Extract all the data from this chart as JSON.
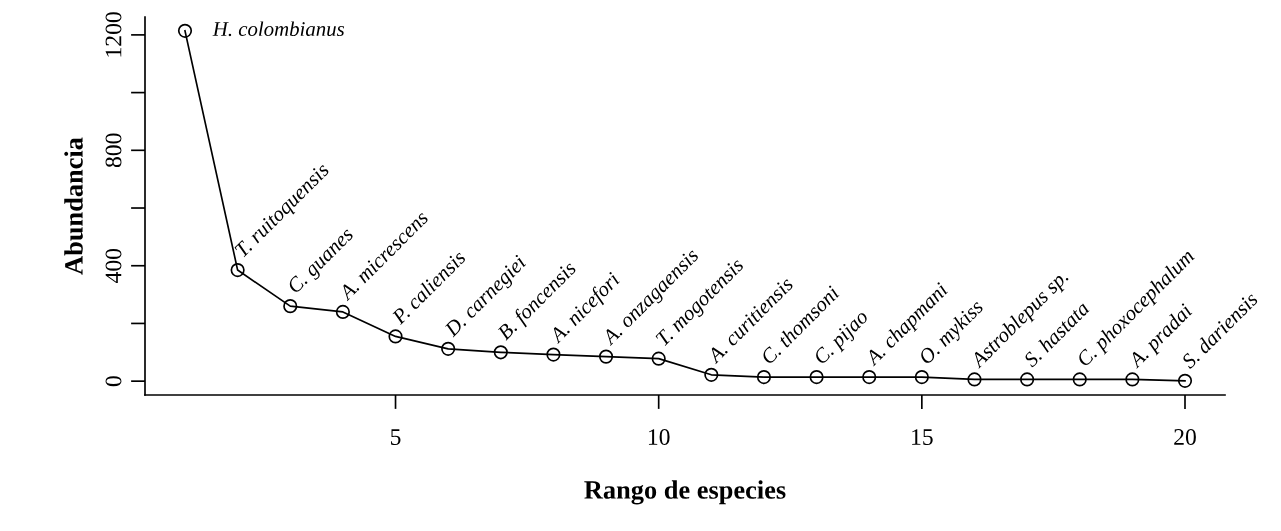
{
  "chart_data": {
    "type": "line",
    "xlabel": "Rango de especies",
    "ylabel": "Abundancia",
    "x": [
      1,
      2,
      3,
      4,
      5,
      6,
      7,
      8,
      9,
      10,
      11,
      12,
      13,
      14,
      15,
      16,
      17,
      18,
      19,
      20
    ],
    "values": [
      1214,
      385,
      260,
      240,
      155,
      112,
      100,
      92,
      85,
      78,
      22,
      14,
      14,
      14,
      14,
      6,
      6,
      6,
      6,
      1
    ],
    "color": "#000000",
    "marker": "circle",
    "line_style": "solid",
    "grid": false,
    "legend": false,
    "xlim": [
      0.24,
      20.76
    ],
    "xticks": [
      5,
      10,
      15,
      20
    ],
    "ylim": [
      -48,
      1262
    ],
    "yticks": [
      0,
      {
        "value": 200,
        "label": null
      },
      400,
      {
        "value": 600,
        "label": null
      },
      800,
      {
        "value": 1000,
        "label": null
      },
      1200
    ],
    "annotations": [
      {
        "text": "H. colombianus",
        "x": 1,
        "y": 1214
      },
      {
        "text": "T. ruitoquensis",
        "x": 2,
        "y": 385
      },
      {
        "text": "C. guanes",
        "x": 3,
        "y": 260
      },
      {
        "text": "A. micrescens",
        "x": 4,
        "y": 240
      },
      {
        "text": "P. caliensis",
        "x": 5,
        "y": 155
      },
      {
        "text": "D. carnegiei",
        "x": 6,
        "y": 112
      },
      {
        "text": "B. foncensis",
        "x": 7,
        "y": 100
      },
      {
        "text": "A. nicefori",
        "x": 8,
        "y": 92
      },
      {
        "text": "A. onzagaensis",
        "x": 9,
        "y": 85
      },
      {
        "text": "T. mogotensis",
        "x": 10,
        "y": 78
      },
      {
        "text": "A. curitiensis",
        "x": 11,
        "y": 22
      },
      {
        "text": "C. thomsoni",
        "x": 12,
        "y": 14
      },
      {
        "text": "C. pijao",
        "x": 13,
        "y": 14
      },
      {
        "text": "A. chapmani",
        "x": 14,
        "y": 14
      },
      {
        "text": "O. mykiss",
        "x": 15,
        "y": 14
      },
      {
        "text": "Astroblepus sp.",
        "x": 16,
        "y": 6
      },
      {
        "text": "S. hastata",
        "x": 17,
        "y": 6
      },
      {
        "text": "C. phoxocephalum",
        "x": 18,
        "y": 6
      },
      {
        "text": "A. pradai",
        "x": 19,
        "y": 6
      },
      {
        "text": "S. dariensis",
        "x": 20,
        "y": 1
      }
    ]
  }
}
